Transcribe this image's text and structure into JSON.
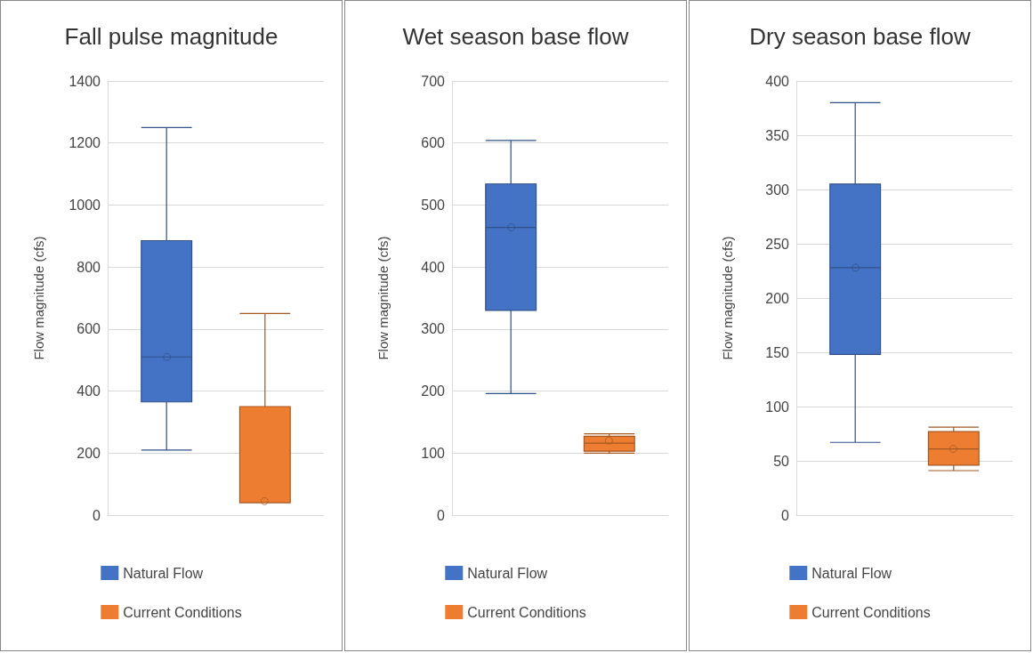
{
  "chart_data": [
    {
      "type": "box",
      "title": "Fall pulse magnitude",
      "ylabel": "Flow magnitude (cfs)",
      "categories": [
        null
      ],
      "ylim": [
        0,
        1400
      ],
      "yticks": [
        0,
        200,
        400,
        600,
        800,
        1000,
        1200,
        1400
      ],
      "grid": "y",
      "legend": "bottom",
      "tick_labels": "y",
      "series": [
        {
          "name": "Natural Flow",
          "color": "#4472c4",
          "boxes": [
            {
              "low": 210,
              "q1": 365,
              "median": 510,
              "q3": 885,
              "high": 1250,
              "mean": 510
            }
          ]
        },
        {
          "name": "Current Conditions",
          "color": "#ed7d31",
          "boxes": [
            {
              "low": 40,
              "q1": 40,
              "median": 40,
              "q3": 350,
              "high": 650,
              "mean": 45
            }
          ]
        }
      ]
    },
    {
      "type": "box",
      "title": "Wet season base flow",
      "ylabel": "Flow magnitude (cfs)",
      "categories": [
        null
      ],
      "ylim": [
        0,
        700
      ],
      "yticks": [
        0,
        100,
        200,
        300,
        400,
        500,
        600,
        700
      ],
      "grid": "y",
      "legend": "bottom",
      "tick_labels": "y",
      "series": [
        {
          "name": "Natural Flow",
          "color": "#4472c4",
          "boxes": [
            {
              "low": 196,
              "q1": 330,
              "median": 464,
              "q3": 534,
              "high": 604,
              "mean": 464
            }
          ]
        },
        {
          "name": "Current Conditions",
          "color": "#ed7d31",
          "boxes": [
            {
              "low": 100,
              "q1": 103,
              "median": 116,
              "q3": 127,
              "high": 131,
              "mean": 120
            }
          ]
        }
      ]
    },
    {
      "type": "box",
      "title": "Dry season base flow",
      "ylabel": "Flow magnitude (cfs)",
      "categories": [
        null
      ],
      "ylim": [
        0,
        400
      ],
      "yticks": [
        0,
        50,
        100,
        150,
        200,
        250,
        300,
        350,
        400
      ],
      "grid": "y",
      "legend": "bottom",
      "tick_labels": "y",
      "series": [
        {
          "name": "Natural Flow",
          "color": "#4472c4",
          "boxes": [
            {
              "low": 67,
              "q1": 148,
              "median": 228,
              "q3": 305,
              "high": 380,
              "mean": 228
            }
          ]
        },
        {
          "name": "Current Conditions",
          "color": "#ed7d31",
          "boxes": [
            {
              "low": 41,
              "q1": 46,
              "median": 61,
              "q3": 77,
              "high": 81,
              "mean": 61
            }
          ]
        }
      ]
    }
  ]
}
